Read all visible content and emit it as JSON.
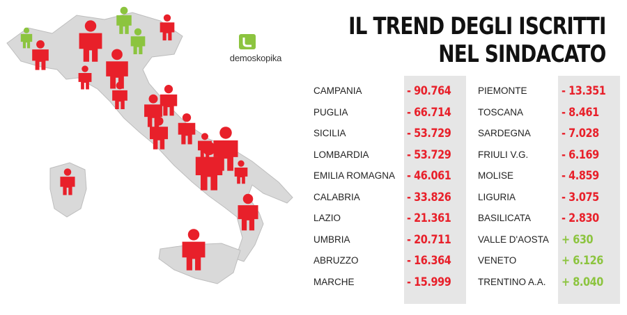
{
  "title": {
    "line1": "IL TREND DEGLI ISCRITTI",
    "line2": "NEL SINDACATO"
  },
  "logo": {
    "text": "demoskopika"
  },
  "colors": {
    "negative": "#e8202a",
    "positive": "#8cc43f",
    "map_fill": "#d9d9d9",
    "band": "#e6e6e6"
  },
  "chart_data": {
    "type": "table",
    "title": "IL TREND DEGLI ISCRITTI NEL SINDACATO",
    "columns": [
      {
        "rows": [
          {
            "region": "CAMPANIA",
            "value_label": "- 90.764",
            "value": -90764
          },
          {
            "region": "PUGLIA",
            "value_label": "- 66.714",
            "value": -66714
          },
          {
            "region": "SICILIA",
            "value_label": "- 53.729",
            "value": -53729
          },
          {
            "region": "LOMBARDIA",
            "value_label": "- 53.729",
            "value": -53729
          },
          {
            "region": "EMILIA ROMAGNA",
            "value_label": "- 46.061",
            "value": -46061
          },
          {
            "region": "CALABRIA",
            "value_label": "- 33.826",
            "value": -33826
          },
          {
            "region": "LAZIO",
            "value_label": "- 21.361",
            "value": -21361
          },
          {
            "region": "UMBRIA",
            "value_label": "- 20.711",
            "value": -20711
          },
          {
            "region": "ABRUZZO",
            "value_label": "- 16.364",
            "value": -16364
          },
          {
            "region": "MARCHE",
            "value_label": "- 15.999",
            "value": -15999
          }
        ]
      },
      {
        "rows": [
          {
            "region": "PIEMONTE",
            "value_label": "- 13.351",
            "value": -13351
          },
          {
            "region": "TOSCANA",
            "value_label": "- 8.461",
            "value": -8461
          },
          {
            "region": "SARDEGNA",
            "value_label": "- 7.028",
            "value": -7028
          },
          {
            "region": "FRIULI V.G.",
            "value_label": "- 6.169",
            "value": -6169
          },
          {
            "region": "MOLISE",
            "value_label": "- 4.859",
            "value": -4859
          },
          {
            "region": "LIGURIA",
            "value_label": "- 3.075",
            "value": -3075
          },
          {
            "region": "BASILICATA",
            "value_label": "- 2.830",
            "value": -2830
          },
          {
            "region": "VALLE D'AOSTA",
            "value_label": "+ 630",
            "value": 630
          },
          {
            "region": "VENETO",
            "value_label": "+ 6.126",
            "value": 6126
          },
          {
            "region": "TRENTINO A.A.",
            "value_label": "+ 8.040",
            "value": 8040
          }
        ]
      }
    ]
  },
  "map_markers": [
    {
      "region": "Valle d'Aosta",
      "value": 630
    },
    {
      "region": "Trentino A.A.",
      "value": 8040
    },
    {
      "region": "Veneto",
      "value": 6126
    },
    {
      "region": "Friuli V.G.",
      "value": -6169
    },
    {
      "region": "Piemonte",
      "value": -13351
    },
    {
      "region": "Lombardia",
      "value": -53729
    },
    {
      "region": "Emilia Romagna",
      "value": -46061
    },
    {
      "region": "Liguria",
      "value": -3075
    },
    {
      "region": "Toscana",
      "value": -8461
    },
    {
      "region": "Umbria",
      "value": -20711
    },
    {
      "region": "Marche",
      "value": -15999
    },
    {
      "region": "Lazio",
      "value": -21361
    },
    {
      "region": "Abruzzo",
      "value": -16364
    },
    {
      "region": "Molise",
      "value": -4859
    },
    {
      "region": "Campania",
      "value": -90764
    },
    {
      "region": "Puglia",
      "value": -66714
    },
    {
      "region": "Basilicata",
      "value": -2830
    },
    {
      "region": "Calabria",
      "value": -33826
    },
    {
      "region": "Sicilia",
      "value": -53729
    },
    {
      "region": "Sardegna",
      "value": -7028
    }
  ]
}
